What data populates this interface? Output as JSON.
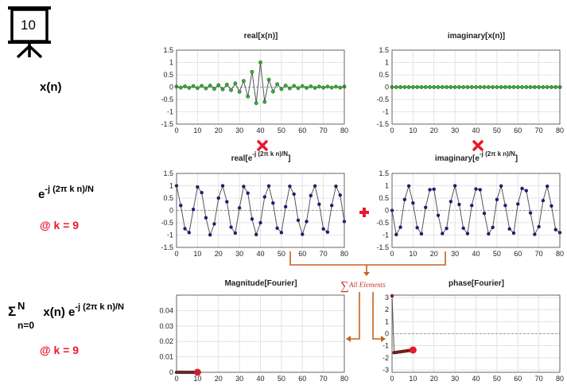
{
  "badge": {
    "number": "10"
  },
  "labels": {
    "xn": "x(n)",
    "exp_base": "e",
    "exp_power": "-j (2π k n)/N",
    "k1": "@ k = 9",
    "sum_symbol": "Σ",
    "sum_upper": "N",
    "sum_lower": "n=0",
    "sum_body": "x(n) e",
    "sum_power": "-j (2π k n)/N",
    "k2": "@ k = 9",
    "all_elements": "All Elements"
  },
  "titles": {
    "p1": "real[x(n)]",
    "p2": "imaginary[x(n)]",
    "p3_base": "real[e",
    "p3_sup": "-j (2π k n)/N",
    "p3_end": "]",
    "p4_base": "imaginary[e",
    "p4_sup": "-j (2π k n)/N",
    "p4_end": "]",
    "p5": "Magnitude[Fourier]",
    "p6": "phase[Fourier]"
  },
  "colors": {
    "green": "#2bb52b",
    "navy": "#1a1a8c",
    "red": "#e8192c",
    "orange": "#c5631a",
    "stem": "#555555"
  },
  "chart_data": [
    {
      "type": "line",
      "name": "real[x(n)]",
      "x": [
        0,
        2,
        4,
        6,
        8,
        10,
        12,
        14,
        16,
        18,
        20,
        22,
        24,
        26,
        28,
        30,
        32,
        34,
        36,
        38,
        40,
        42,
        44,
        46,
        48,
        50,
        52,
        54,
        56,
        58,
        60,
        62,
        64,
        66,
        68,
        70,
        72,
        74,
        76,
        78,
        80
      ],
      "y": [
        0.02,
        -0.02,
        0.03,
        -0.03,
        0.04,
        -0.04,
        0.05,
        -0.05,
        0.06,
        -0.07,
        0.08,
        -0.09,
        0.1,
        -0.12,
        0.15,
        -0.19,
        0.25,
        -0.38,
        0.62,
        -0.65,
        1.0,
        -0.6,
        0.3,
        -0.18,
        0.12,
        -0.08,
        0.06,
        -0.05,
        0.05,
        -0.04,
        0.04,
        -0.03,
        0.03,
        -0.03,
        0.02,
        -0.02,
        0.02,
        -0.02,
        0.02,
        -0.02,
        0.02
      ],
      "xlim": [
        0,
        80
      ],
      "ylim": [
        -1.5,
        1.5
      ],
      "xticks": [
        0,
        10,
        20,
        30,
        40,
        50,
        60,
        70,
        80
      ],
      "yticks": [
        -1.5,
        -1,
        -0.5,
        0,
        0.5,
        1,
        1.5
      ],
      "grid": true
    },
    {
      "type": "line",
      "name": "imaginary[x(n)]",
      "x": [
        0,
        2,
        4,
        6,
        8,
        10,
        12,
        14,
        16,
        18,
        20,
        22,
        24,
        26,
        28,
        30,
        32,
        34,
        36,
        38,
        40,
        42,
        44,
        46,
        48,
        50,
        52,
        54,
        56,
        58,
        60,
        62,
        64,
        66,
        68,
        70,
        72,
        74,
        76,
        78,
        80
      ],
      "y": [
        0,
        0,
        0,
        0,
        0,
        0,
        0,
        0,
        0,
        0,
        0,
        0,
        0,
        0,
        0,
        0,
        0,
        0,
        0,
        0,
        0,
        0,
        0,
        0,
        0,
        0,
        0,
        0,
        0,
        0,
        0,
        0,
        0,
        0,
        0,
        0,
        0,
        0,
        0,
        0,
        0
      ],
      "xlim": [
        0,
        80
      ],
      "ylim": [
        -1.5,
        1.5
      ],
      "xticks": [
        0,
        10,
        20,
        30,
        40,
        50,
        60,
        70,
        80
      ],
      "yticks": [
        -1.5,
        -1,
        -0.5,
        0,
        0.5,
        1,
        1.5
      ],
      "grid": true
    },
    {
      "type": "line",
      "name": "real[e^-j(2πkn)/N]",
      "x": [
        0,
        2,
        4,
        6,
        8,
        10,
        12,
        14,
        16,
        18,
        20,
        22,
        24,
        26,
        28,
        30,
        32,
        34,
        36,
        38,
        40,
        42,
        44,
        46,
        48,
        50,
        52,
        54,
        56,
        58,
        60,
        62,
        64,
        66,
        68,
        70,
        72,
        74,
        76,
        78,
        80
      ],
      "y": [
        1.0,
        0.2,
        -0.74,
        -0.9,
        0.04,
        0.95,
        0.72,
        -0.3,
        -0.99,
        -0.55,
        0.5,
        1.0,
        0.35,
        -0.68,
        -0.92,
        0.1,
        0.97,
        0.7,
        -0.35,
        -0.98,
        -0.5,
        0.55,
        0.99,
        0.3,
        -0.72,
        -0.9,
        0.15,
        0.98,
        0.66,
        -0.4,
        -0.97,
        -0.45,
        0.6,
        0.99,
        0.25,
        -0.75,
        -0.88,
        0.2,
        0.98,
        0.62,
        -0.45
      ],
      "xlim": [
        0,
        80
      ],
      "ylim": [
        -1.5,
        1.5
      ],
      "xticks": [
        0,
        10,
        20,
        30,
        40,
        50,
        60,
        70,
        80
      ],
      "yticks": [
        -1.5,
        -1,
        -0.5,
        0,
        0.5,
        1,
        1.5
      ],
      "grid": true
    },
    {
      "type": "line",
      "name": "imaginary[e^-j(2πkn)/N]",
      "x": [
        0,
        2,
        4,
        6,
        8,
        10,
        12,
        14,
        16,
        18,
        20,
        22,
        24,
        26,
        28,
        30,
        32,
        34,
        36,
        38,
        40,
        42,
        44,
        46,
        48,
        50,
        52,
        54,
        56,
        58,
        60,
        62,
        64,
        66,
        68,
        70,
        72,
        74,
        76,
        78,
        80
      ],
      "y": [
        0,
        -0.98,
        -0.68,
        0.44,
        0.99,
        0.3,
        -0.7,
        -0.95,
        0.12,
        0.84,
        0.86,
        -0.2,
        -0.94,
        -0.73,
        0.36,
        1.0,
        0.24,
        -0.72,
        -0.94,
        0.2,
        0.87,
        0.84,
        -0.12,
        -0.95,
        -0.69,
        0.44,
        0.99,
        0.2,
        -0.75,
        -0.92,
        0.26,
        0.89,
        0.8,
        -0.1,
        -0.97,
        -0.66,
        0.4,
        0.98,
        0.18,
        -0.78,
        -0.9
      ],
      "xlim": [
        0,
        80
      ],
      "ylim": [
        -1.5,
        1.5
      ],
      "xticks": [
        0,
        10,
        20,
        30,
        40,
        50,
        60,
        70,
        80
      ],
      "yticks": [
        -1.5,
        -1,
        -0.5,
        0,
        0.5,
        1,
        1.5
      ],
      "grid": true
    },
    {
      "type": "line",
      "name": "Magnitude[Fourier]",
      "x": [
        0,
        1,
        2,
        3,
        4,
        5,
        6,
        7,
        8,
        9,
        10
      ],
      "y": [
        0,
        0,
        0,
        0,
        0,
        0,
        0,
        0,
        0,
        0,
        0
      ],
      "highlight": {
        "x": 10,
        "y": 0
      },
      "xlim": [
        0,
        80
      ],
      "ylim": [
        0,
        0.05
      ],
      "xticks": [
        0,
        10,
        20,
        30,
        40,
        50,
        60,
        70,
        80
      ],
      "yticks": [
        0,
        0.01,
        0.02,
        0.03,
        0.04
      ],
      "grid": true
    },
    {
      "type": "line",
      "name": "phase[Fourier]",
      "x": [
        0,
        1,
        2,
        3,
        4,
        5,
        6,
        7,
        8,
        9,
        10
      ],
      "y": [
        3.14,
        -1.57,
        -1.55,
        -1.52,
        -1.5,
        -1.47,
        -1.45,
        -1.42,
        -1.4,
        -1.37,
        -1.35
      ],
      "highlight": {
        "x": 10,
        "y": -1.35
      },
      "xlim": [
        0,
        80
      ],
      "ylim": [
        -3.2,
        3.2
      ],
      "xticks": [
        0,
        10,
        20,
        30,
        40,
        50,
        60,
        70,
        80
      ],
      "yticks": [
        -3,
        -2,
        -1,
        0,
        1,
        2,
        3
      ],
      "grid": true
    }
  ]
}
